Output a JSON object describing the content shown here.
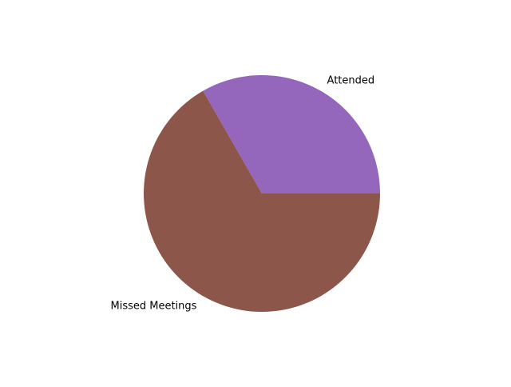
{
  "chart_data": {
    "type": "pie",
    "title": "",
    "slices": [
      {
        "label": "Attended",
        "value": 33.3,
        "color": "#9467bd"
      },
      {
        "label": "Missed Meetings",
        "value": 66.7,
        "color": "#8c564b"
      }
    ],
    "start_angle_deg": 0,
    "direction": "counterclockwise",
    "legend": "none"
  }
}
